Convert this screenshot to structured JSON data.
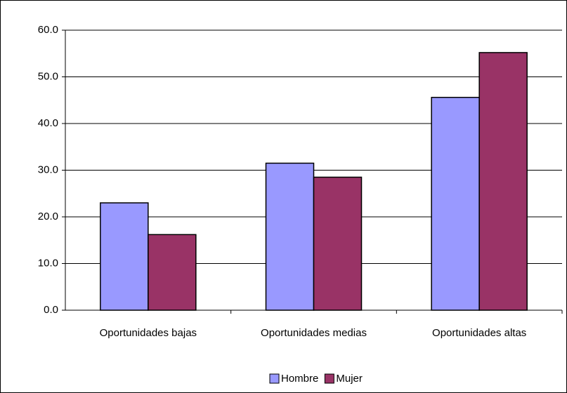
{
  "chart_data": {
    "type": "bar",
    "categories": [
      "Oportunidades bajas",
      "Oportunidades medias",
      "Oportunidades altas"
    ],
    "series": [
      {
        "name": "Hombre",
        "color": "#9999ff",
        "values": [
          23.0,
          31.5,
          45.6
        ]
      },
      {
        "name": "Mujer",
        "color": "#993366",
        "values": [
          16.2,
          28.5,
          55.2
        ]
      }
    ],
    "ylim": [
      0,
      60
    ],
    "yticks": [
      {
        "value": 0,
        "label": "0.0"
      },
      {
        "value": 10,
        "label": "10.0"
      },
      {
        "value": 20,
        "label": "20.0"
      },
      {
        "value": 30,
        "label": "30.0"
      },
      {
        "value": 40,
        "label": "40.0"
      },
      {
        "value": 50,
        "label": "50.0"
      },
      {
        "value": 60,
        "label": "60.0"
      }
    ],
    "grid": true,
    "legend": "bottom"
  }
}
